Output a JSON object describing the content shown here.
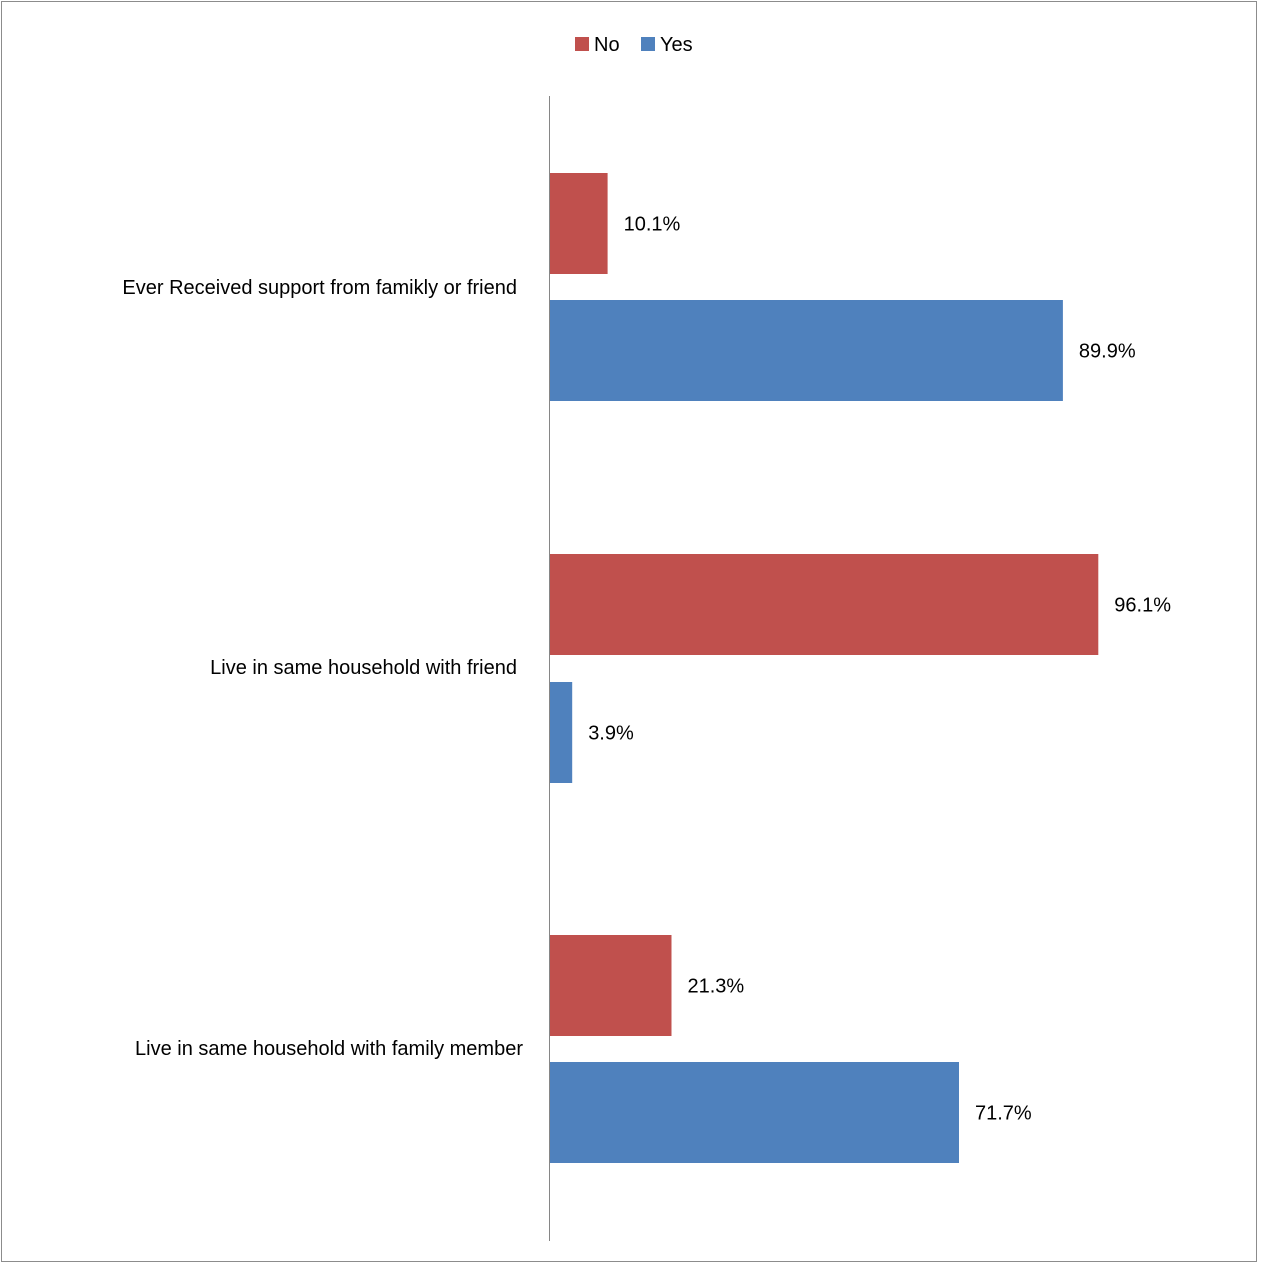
{
  "chart_data": {
    "type": "bar",
    "orientation": "horizontal",
    "categories": [
      "Ever Received support from famikly or friend",
      "Live in same household with friend",
      "Live in same household with family member"
    ],
    "series": [
      {
        "name": "No",
        "color": "#C0504D",
        "values": [
          10.1,
          96.1,
          21.3
        ],
        "labels": [
          "10.1%",
          "96.1%",
          "21.3%"
        ]
      },
      {
        "name": "Yes",
        "color": "#4F81BD",
        "values": [
          89.9,
          3.9,
          71.7
        ],
        "labels": [
          "89.9%",
          "3.9%",
          "71.7%"
        ]
      }
    ],
    "title": "",
    "xlabel": "",
    "ylabel": "",
    "xlim": [
      0,
      100
    ],
    "legend": "top-center",
    "grid": false,
    "value_axis_visible": false
  }
}
